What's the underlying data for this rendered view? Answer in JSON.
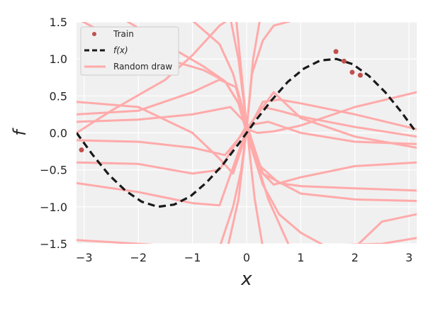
{
  "chart_data": {
    "type": "line",
    "title": "",
    "xlabel": "x",
    "ylabel": "f",
    "xlim": [
      -3.14159,
      3.14159
    ],
    "ylim": [
      -1.5,
      1.5
    ],
    "x_ticks": [
      -3,
      -2,
      -1,
      0,
      1,
      2,
      3
    ],
    "y_ticks": [
      -1.5,
      -1.0,
      -0.5,
      0.0,
      0.5,
      1.0,
      1.5
    ],
    "x_tick_labels": [
      "−3",
      "−2",
      "−1",
      "0",
      "1",
      "2",
      "3"
    ],
    "y_tick_labels": [
      "−1.5",
      "−1.0",
      "−0.5",
      "0.0",
      "0.5",
      "1.0",
      "1.5"
    ],
    "grid": true,
    "legend_position": "top-left",
    "legend": [
      {
        "label": "Train",
        "kind": "marker"
      },
      {
        "label": "f(x)",
        "kind": "dashed"
      },
      {
        "label": "Random draw",
        "kind": "line"
      }
    ],
    "colors": {
      "train": "#c0504d",
      "true_function": "#1a1a1a",
      "random_draw": "#ffaaaa",
      "axes_background": "#f0f0f0",
      "grid": "#ffffff"
    },
    "train_points": {
      "x": [
        -3.05,
        1.65,
        1.8,
        1.95,
        2.1
      ],
      "y": [
        -0.23,
        1.1,
        0.97,
        0.82,
        0.78
      ]
    },
    "true_function": {
      "x": [
        -3.14,
        -2.84,
        -2.54,
        -2.24,
        -1.94,
        -1.64,
        -1.34,
        -1.04,
        -0.74,
        -0.44,
        -0.14,
        0.16,
        0.46,
        0.76,
        1.06,
        1.36,
        1.66,
        1.96,
        2.26,
        2.56,
        2.86,
        3.14
      ],
      "y": [
        0.0,
        -0.3,
        -0.57,
        -0.78,
        -0.93,
        -1.0,
        -0.97,
        -0.86,
        -0.67,
        -0.43,
        -0.14,
        0.16,
        0.44,
        0.69,
        0.87,
        0.98,
        1.0,
        0.93,
        0.77,
        0.55,
        0.28,
        0.0
      ]
    },
    "random_draws": [
      {
        "x": [
          -3.14,
          -2.5,
          -1.5,
          -1.0,
          -0.5,
          -0.2,
          0.0,
          0.3,
          1.0,
          2.0,
          3.14
        ],
        "y": [
          0.0,
          0.3,
          0.72,
          1.05,
          1.45,
          1.6,
          0.1,
          -0.55,
          -0.82,
          -0.9,
          -0.92
        ]
      },
      {
        "x": [
          -3.14,
          -2.0,
          -1.0,
          -0.5,
          -0.25,
          0.0,
          0.3,
          0.6,
          1.0,
          2.0,
          3.14
        ],
        "y": [
          0.42,
          0.35,
          0.0,
          -0.35,
          -0.55,
          0.0,
          0.42,
          0.45,
          0.4,
          0.25,
          0.05
        ]
      },
      {
        "x": [
          -3.14,
          -2.0,
          -1.0,
          -0.5,
          -0.2,
          0.0,
          0.3,
          0.5,
          1.0,
          2.0,
          3.14
        ],
        "y": [
          0.25,
          0.3,
          0.55,
          0.72,
          0.62,
          0.08,
          -0.55,
          -0.7,
          -0.6,
          -0.45,
          -0.4
        ]
      },
      {
        "x": [
          -3.14,
          -2.0,
          -1.0,
          -0.3,
          0.0,
          0.25,
          0.6,
          1.0,
          2.0,
          3.14
        ],
        "y": [
          0.15,
          0.18,
          0.25,
          0.35,
          0.12,
          -0.45,
          -0.68,
          -0.72,
          -0.75,
          -0.78
        ]
      },
      {
        "x": [
          -3.14,
          -2.0,
          -1.0,
          -0.4,
          0.0,
          0.3,
          0.6,
          1.0,
          2.0,
          3.14
        ],
        "y": [
          -0.1,
          -0.12,
          -0.2,
          -0.3,
          0.05,
          0.35,
          0.3,
          0.22,
          0.08,
          -0.05
        ]
      },
      {
        "x": [
          -3.14,
          -2.0,
          -1.0,
          -0.5,
          0.0,
          0.4,
          1.0,
          2.0,
          3.14
        ],
        "y": [
          -0.4,
          -0.42,
          -0.55,
          -0.5,
          0.1,
          0.15,
          0.0,
          -0.12,
          -0.15
        ]
      },
      {
        "x": [
          -3.14,
          -2.0,
          -1.0,
          -0.5,
          0.0,
          0.5,
          1.0,
          2.0,
          3.14
        ],
        "y": [
          -0.68,
          -0.8,
          -0.95,
          -0.98,
          0.05,
          0.55,
          0.2,
          -0.05,
          -0.2
        ]
      },
      {
        "x": [
          -3.14,
          -2.5,
          -1.5,
          -0.8,
          -0.4,
          -0.1,
          0.0,
          0.2,
          0.5,
          1.0,
          2.0,
          3.14
        ],
        "y": [
          1.55,
          1.3,
          1.0,
          0.85,
          0.7,
          0.35,
          0.05,
          0.0,
          0.02,
          0.1,
          0.35,
          0.55
        ]
      },
      {
        "x": [
          -2.3,
          -1.5,
          -0.8,
          -0.4,
          -0.15,
          0.0,
          0.3,
          0.6,
          1.0,
          1.5
        ],
        "y": [
          1.55,
          1.2,
          0.9,
          0.7,
          0.4,
          0.0,
          -0.7,
          -1.1,
          -1.35,
          -1.55
        ]
      },
      {
        "x": [
          -1.05,
          -0.5,
          -0.25,
          -0.1,
          0.0,
          0.15,
          0.4,
          0.8
        ],
        "y": [
          1.55,
          1.2,
          0.8,
          0.4,
          0.1,
          -0.3,
          -0.9,
          -1.55
        ]
      },
      {
        "x": [
          -0.5,
          -0.25,
          -0.1,
          0.0,
          0.1,
          0.3,
          0.5,
          1.0,
          2.0,
          3.14
        ],
        "y": [
          -1.55,
          -1.0,
          -0.5,
          0.05,
          0.8,
          1.25,
          1.45,
          1.55,
          1.55,
          1.55
        ]
      },
      {
        "x": [
          -0.3,
          -0.15,
          0.0,
          0.15,
          0.3
        ],
        "y": [
          1.55,
          1.0,
          0.1,
          -0.9,
          -1.55
        ]
      },
      {
        "x": [
          -0.35,
          -0.15,
          0.0,
          0.12,
          0.25
        ],
        "y": [
          -1.55,
          -0.9,
          0.05,
          1.0,
          1.55
        ]
      },
      {
        "x": [
          -3.14,
          -2.0,
          -1.0,
          0.0,
          1.0,
          2.0,
          3.14
        ],
        "y": [
          -1.45,
          -1.5,
          -1.55,
          -1.55,
          -1.55,
          -1.55,
          -1.55
        ]
      },
      {
        "x": [
          2.0,
          2.5,
          3.14
        ],
        "y": [
          -1.55,
          -1.2,
          -1.1
        ]
      },
      {
        "x": [
          0.6,
          1.5,
          2.5,
          3.14
        ],
        "y": [
          -1.55,
          -1.52,
          -1.5,
          -1.42
        ]
      }
    ]
  }
}
